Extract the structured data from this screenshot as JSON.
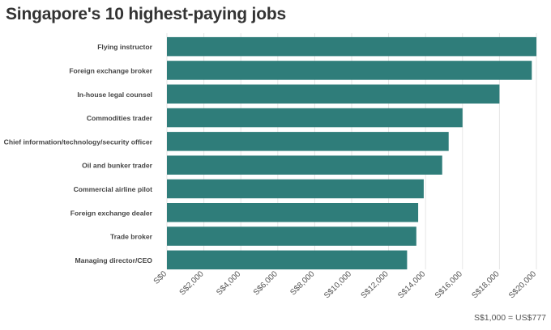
{
  "title": "Singapore's 10 highest-paying jobs",
  "footnote": "S$1,000 = US$777",
  "colors": {
    "bar": "#2f7d7a",
    "grid": "#e6e6e6",
    "label": "#444444",
    "tick": "#555555"
  },
  "chart_data": {
    "type": "bar",
    "orientation": "horizontal",
    "title": "Singapore's 10 highest-paying jobs",
    "categories": [
      "Flying instructor",
      "Foreign exchange broker",
      "In-house legal counsel",
      "Commodities trader",
      "Chief information/technology/security officer",
      "Oil and bunker trader",
      "Commercial airline pilot",
      "Foreign exchange dealer",
      "Trade broker",
      "Managing director/CEO"
    ],
    "values": [
      20000,
      19750,
      18000,
      16000,
      15250,
      14900,
      13900,
      13600,
      13500,
      13000
    ],
    "xlim": [
      0,
      20000
    ],
    "xticks": [
      0,
      2000,
      4000,
      6000,
      8000,
      10000,
      12000,
      14000,
      16000,
      18000,
      20000
    ],
    "xtick_labels": [
      "S$0",
      "S$2,000",
      "S$4,000",
      "S$6,000",
      "S$8,000",
      "S$10,000",
      "S$12,000",
      "S$14,000",
      "S$16,000",
      "S$18,000",
      "S$20,000"
    ],
    "xlabel": "",
    "ylabel": "",
    "grid": "vertical",
    "legend": "none"
  }
}
